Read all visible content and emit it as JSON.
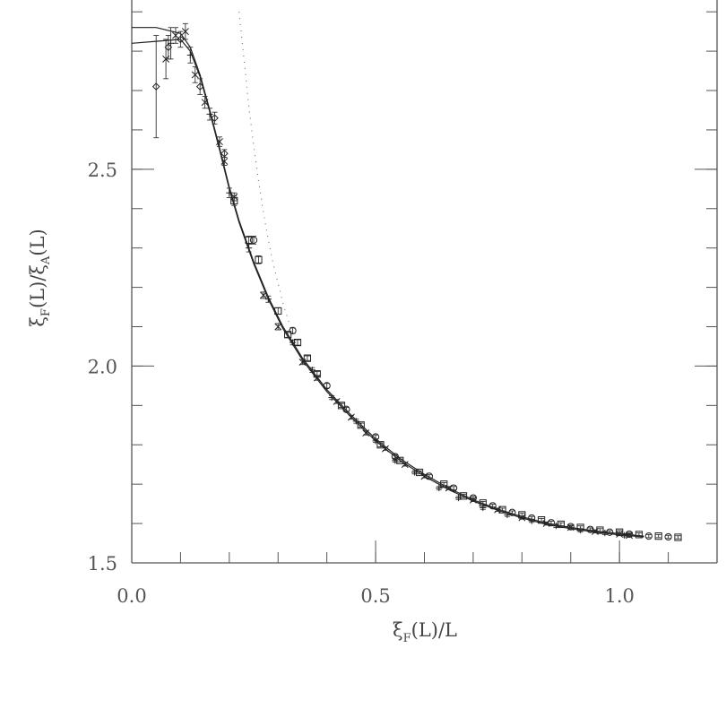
{
  "chart_data": {
    "type": "scatter",
    "title": "",
    "xlabel": {
      "main": "ξ",
      "sub": "F",
      "rest": "(L)/L"
    },
    "ylabel": {
      "main": "ξ",
      "sub1": "F",
      "mid": "(L)/ξ",
      "sub2": "A",
      "rest": "(L)"
    },
    "xlim": [
      0.0,
      1.2
    ],
    "ylim": [
      1.5,
      2.93
    ],
    "x_ticks": [
      {
        "value": 0.0,
        "label": "0.0"
      },
      {
        "value": 0.5,
        "label": "0.5"
      },
      {
        "value": 1.0,
        "label": "1.0"
      }
    ],
    "y_ticks": [
      {
        "value": 1.5,
        "label": "1.5"
      },
      {
        "value": 2.0,
        "label": "2.0"
      },
      {
        "value": 2.5,
        "label": "2.5"
      }
    ],
    "x_minor_step": 0.1,
    "y_minor_step": 0.1,
    "grid": false,
    "curves": [
      {
        "style": "solid",
        "x": [
          0.0,
          0.05,
          0.1,
          0.12,
          0.14,
          0.16,
          0.18,
          0.2,
          0.22,
          0.25,
          0.28,
          0.31,
          0.35,
          0.4,
          0.45,
          0.5,
          0.55,
          0.6,
          0.65,
          0.7,
          0.75,
          0.8,
          0.85,
          0.9,
          0.95,
          1.0,
          1.05
        ],
        "y": [
          2.86,
          2.86,
          2.845,
          2.81,
          2.74,
          2.65,
          2.555,
          2.455,
          2.37,
          2.265,
          2.175,
          2.1,
          2.02,
          1.94,
          1.875,
          1.815,
          1.765,
          1.725,
          1.69,
          1.66,
          1.637,
          1.617,
          1.601,
          1.59,
          1.581,
          1.574,
          1.568
        ]
      },
      {
        "style": "solid",
        "x": [
          0.0,
          0.05,
          0.1,
          0.12,
          0.14,
          0.16,
          0.18,
          0.2,
          0.22,
          0.25,
          0.28,
          0.31,
          0.35,
          0.4,
          0.45,
          0.5,
          0.55,
          0.6,
          0.65,
          0.7,
          0.75,
          0.8,
          0.85,
          0.9,
          0.95,
          1.0,
          1.05
        ],
        "y": [
          2.82,
          2.825,
          2.83,
          2.8,
          2.735,
          2.645,
          2.55,
          2.45,
          2.365,
          2.26,
          2.17,
          2.095,
          2.015,
          1.935,
          1.87,
          1.81,
          1.76,
          1.72,
          1.686,
          1.657,
          1.634,
          1.614,
          1.598,
          1.587,
          1.578,
          1.571,
          1.566
        ]
      },
      {
        "style": "dotted",
        "x": [
          0.22,
          0.23,
          0.24,
          0.25,
          0.26,
          0.27,
          0.28,
          0.29,
          0.3,
          0.31,
          0.32,
          0.33,
          0.34
        ],
        "y": [
          2.9,
          2.78,
          2.66,
          2.56,
          2.47,
          2.39,
          2.32,
          2.26,
          2.21,
          2.16,
          2.12,
          2.08,
          2.05
        ]
      }
    ],
    "series": [
      {
        "marker": "diamond",
        "x": [
          0.05,
          0.075,
          0.1,
          0.14,
          0.17,
          0.19
        ],
        "y": [
          2.71,
          2.81,
          2.83,
          2.71,
          2.63,
          2.54
        ],
        "err": [
          0.13,
          0.03,
          0.02,
          0.02,
          0.015,
          0.01
        ]
      },
      {
        "marker": "cross",
        "x": [
          0.07,
          0.09,
          0.11,
          0.13,
          0.15,
          0.18,
          0.19,
          0.21,
          0.27,
          0.3,
          0.35,
          0.38,
          0.42,
          0.45,
          0.48,
          0.52,
          0.56,
          0.6,
          0.65,
          0.7,
          0.75,
          0.8,
          0.85,
          0.9,
          0.95,
          1.0,
          1.02
        ],
        "y": [
          2.78,
          2.84,
          2.85,
          2.74,
          2.67,
          2.57,
          2.52,
          2.43,
          2.18,
          2.1,
          2.01,
          1.97,
          1.91,
          1.87,
          1.83,
          1.79,
          1.75,
          1.72,
          1.69,
          1.66,
          1.635,
          1.615,
          1.6,
          1.59,
          1.58,
          1.573,
          1.57
        ],
        "err": [
          0.05,
          0.02,
          0.02,
          0.02,
          0.015,
          0.012,
          0.01,
          0.01,
          0.008,
          0.008,
          0.006,
          0.006,
          0.005,
          0.005,
          0.005,
          0.004,
          0.004,
          0.004,
          0.004,
          0.004,
          0.004,
          0.004,
          0.004,
          0.004,
          0.004,
          0.004,
          0.004
        ]
      },
      {
        "marker": "plus",
        "x": [
          0.08,
          0.12,
          0.16,
          0.2,
          0.24,
          0.28,
          0.33,
          0.37,
          0.41,
          0.46,
          0.5,
          0.54,
          0.58,
          0.63,
          0.67,
          0.72,
          0.77,
          0.82,
          0.87,
          0.92,
          0.97,
          1.01
        ],
        "y": [
          2.82,
          2.79,
          2.64,
          2.44,
          2.3,
          2.17,
          2.06,
          1.99,
          1.92,
          1.86,
          1.81,
          1.76,
          1.73,
          1.69,
          1.665,
          1.64,
          1.622,
          1.607,
          1.594,
          1.583,
          1.576,
          1.57
        ],
        "err": [
          0.04,
          0.02,
          0.015,
          0.012,
          0.01,
          0.008,
          0.006,
          0.006,
          0.005,
          0.005,
          0.004,
          0.004,
          0.004,
          0.004,
          0.004,
          0.004,
          0.004,
          0.004,
          0.004,
          0.004,
          0.004,
          0.004
        ]
      },
      {
        "marker": "square",
        "x": [
          0.21,
          0.24,
          0.26,
          0.3,
          0.32,
          0.34,
          0.36,
          0.38,
          0.43,
          0.47,
          0.51,
          0.55,
          0.59,
          0.64,
          0.68,
          0.72,
          0.76,
          0.8,
          0.84,
          0.88,
          0.92,
          0.96,
          1.0,
          1.04,
          1.08,
          1.12
        ],
        "y": [
          2.42,
          2.32,
          2.27,
          2.14,
          2.08,
          2.06,
          2.02,
          1.98,
          1.9,
          1.85,
          1.8,
          1.76,
          1.73,
          1.7,
          1.67,
          1.652,
          1.635,
          1.622,
          1.609,
          1.598,
          1.59,
          1.583,
          1.578,
          1.572,
          1.568,
          1.565
        ],
        "err": [
          0.012,
          0.01,
          0.01,
          0.008,
          0.007,
          0.007,
          0.006,
          0.006,
          0.005,
          0.005,
          0.005,
          0.004,
          0.004,
          0.004,
          0.004,
          0.004,
          0.004,
          0.004,
          0.004,
          0.004,
          0.004,
          0.004,
          0.004,
          0.004,
          0.004,
          0.004
        ]
      },
      {
        "marker": "circle",
        "x": [
          0.25,
          0.33,
          0.4,
          0.44,
          0.5,
          0.54,
          0.61,
          0.66,
          0.7,
          0.74,
          0.78,
          0.82,
          0.86,
          0.9,
          0.94,
          0.98,
          1.02,
          1.06,
          1.1
        ],
        "y": [
          2.32,
          2.09,
          1.95,
          1.89,
          1.82,
          1.77,
          1.72,
          1.69,
          1.665,
          1.645,
          1.628,
          1.614,
          1.602,
          1.592,
          1.585,
          1.578,
          1.573,
          1.568,
          1.566
        ],
        "err": [
          0.01,
          0.007,
          0.006,
          0.005,
          0.005,
          0.004,
          0.004,
          0.004,
          0.004,
          0.004,
          0.004,
          0.004,
          0.004,
          0.004,
          0.004,
          0.004,
          0.004,
          0.004,
          0.004
        ]
      }
    ]
  }
}
